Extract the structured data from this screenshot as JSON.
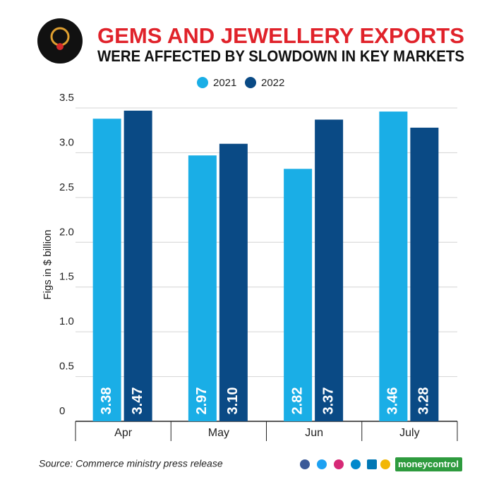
{
  "chart_data": {
    "type": "bar",
    "title": "GEMS AND JEWELLERY EXPORTS",
    "subtitle": "WERE AFFECTED BY SLOWDOWN IN KEY MARKETS",
    "y_label": "Figs in $ billion",
    "categories": [
      "Apr",
      "May",
      "Jun",
      "July"
    ],
    "series": [
      {
        "name": "2021",
        "color": "#1aaee6",
        "values": [
          3.38,
          2.97,
          2.82,
          3.46
        ],
        "value_labels": [
          "3.38",
          "2.97",
          "2.82",
          "3.46"
        ]
      },
      {
        "name": "2022",
        "color": "#0a4a85",
        "values": [
          3.47,
          3.1,
          3.37,
          3.28
        ],
        "value_labels": [
          "3.47",
          "3.10",
          "3.37",
          "3.28"
        ]
      }
    ],
    "ylim": [
      0,
      3.5
    ],
    "yticks": [
      0,
      0.5,
      {
        "value": 1,
        "label": "1.0"
      },
      1.5,
      {
        "value": 2,
        "label": "2.0"
      },
      2.5,
      {
        "value": 3,
        "label": "3.0"
      },
      3.5
    ],
    "grid": true,
    "source": "Source: Commerce ministry press release",
    "brand": "moneycontrol"
  }
}
